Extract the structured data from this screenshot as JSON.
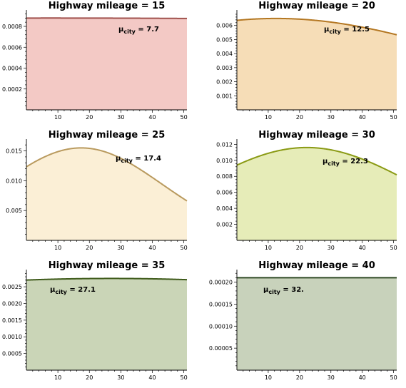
{
  "chart_data": [
    {
      "type": "area",
      "title": "Highway mileage = 15",
      "mu_symbol": "μ",
      "mu_subscript": "city",
      "mu_value": "7.7",
      "mean": 7.7,
      "peak_density": 0.00088,
      "xlim": [
        0,
        51
      ],
      "ylim": [
        0,
        0.00093
      ],
      "x_ticks": [
        10,
        20,
        30,
        40,
        50
      ],
      "y_ticks": [
        0.0002,
        0.0004,
        0.0006,
        0.0008
      ],
      "y_tick_labels": [
        "0.0002",
        "0.0004",
        "0.0006",
        "0.0008"
      ],
      "line_color": "#a0524e",
      "fill_color": "#f3c9c5"
    },
    {
      "type": "area",
      "title": "Highway mileage = 20",
      "mu_symbol": "μ",
      "mu_subscript": "city",
      "mu_value": "12.5",
      "mean": 12.5,
      "peak_density": 0.0065,
      "xlim": [
        0,
        51
      ],
      "ylim": [
        0,
        0.0069
      ],
      "x_ticks": [
        10,
        20,
        30,
        40,
        50
      ],
      "y_ticks": [
        0.001,
        0.002,
        0.003,
        0.004,
        0.005,
        0.006
      ],
      "y_tick_labels": [
        "0.001",
        "0.002",
        "0.003",
        "0.004",
        "0.005",
        "0.006"
      ],
      "line_color": "#b47722",
      "fill_color": "#f6ddb7"
    },
    {
      "type": "area",
      "title": "Highway mileage = 25",
      "mu_symbol": "μ",
      "mu_subscript": "city",
      "mu_value": "17.4",
      "mean": 17.4,
      "peak_density": 0.0155,
      "xlim": [
        0,
        51
      ],
      "ylim": [
        0,
        0.0165
      ],
      "x_ticks": [
        10,
        20,
        30,
        40,
        50
      ],
      "y_ticks": [
        0.005,
        0.01,
        0.015
      ],
      "y_tick_labels": [
        "0.005",
        "0.010",
        "0.015"
      ],
      "line_color": "#b99a5e",
      "fill_color": "#fbefd6"
    },
    {
      "type": "area",
      "title": "Highway mileage = 30",
      "mu_symbol": "μ",
      "mu_subscript": "city",
      "mu_value": "22.3",
      "mean": 22.3,
      "peak_density": 0.0116,
      "xlim": [
        0,
        51
      ],
      "ylim": [
        0,
        0.0123
      ],
      "x_ticks": [
        10,
        20,
        30,
        40,
        50
      ],
      "y_ticks": [
        0.002,
        0.004,
        0.006,
        0.008,
        0.01,
        0.012
      ],
      "y_tick_labels": [
        "0.002",
        "0.004",
        "0.006",
        "0.008",
        "0.010",
        "0.012"
      ],
      "line_color": "#8a9a14",
      "fill_color": "#e6ecb8"
    },
    {
      "type": "area",
      "title": "Highway mileage = 35",
      "mu_symbol": "μ",
      "mu_subscript": "city",
      "mu_value": "27.1",
      "mean": 27.1,
      "peak_density": 0.00275,
      "xlim": [
        0,
        51
      ],
      "ylim": [
        0,
        0.00293
      ],
      "x_ticks": [
        10,
        20,
        30,
        40,
        50
      ],
      "y_ticks": [
        0.0005,
        0.001,
        0.0015,
        0.002,
        0.0025
      ],
      "y_tick_labels": [
        "0.0005",
        "0.0010",
        "0.0015",
        "0.0020",
        "0.0025"
      ],
      "line_color": "#3e5a1a",
      "fill_color": "#cad5b7"
    },
    {
      "type": "area",
      "title": "Highway mileage = 40",
      "mu_symbol": "μ",
      "mu_subscript": "city",
      "mu_value": "32.",
      "mean": 32,
      "peak_density": 0.00021,
      "xlim": [
        0,
        51
      ],
      "ylim": [
        0,
        0.000222
      ],
      "x_ticks": [
        10,
        20,
        30,
        40,
        50
      ],
      "y_ticks": [
        5e-05,
        0.0001,
        0.00015,
        0.0002
      ],
      "y_tick_labels": [
        "0.00005",
        "0.00010",
        "0.00015",
        "0.00020"
      ],
      "line_color": "#2f4a24",
      "fill_color": "#c8d2bb"
    }
  ]
}
